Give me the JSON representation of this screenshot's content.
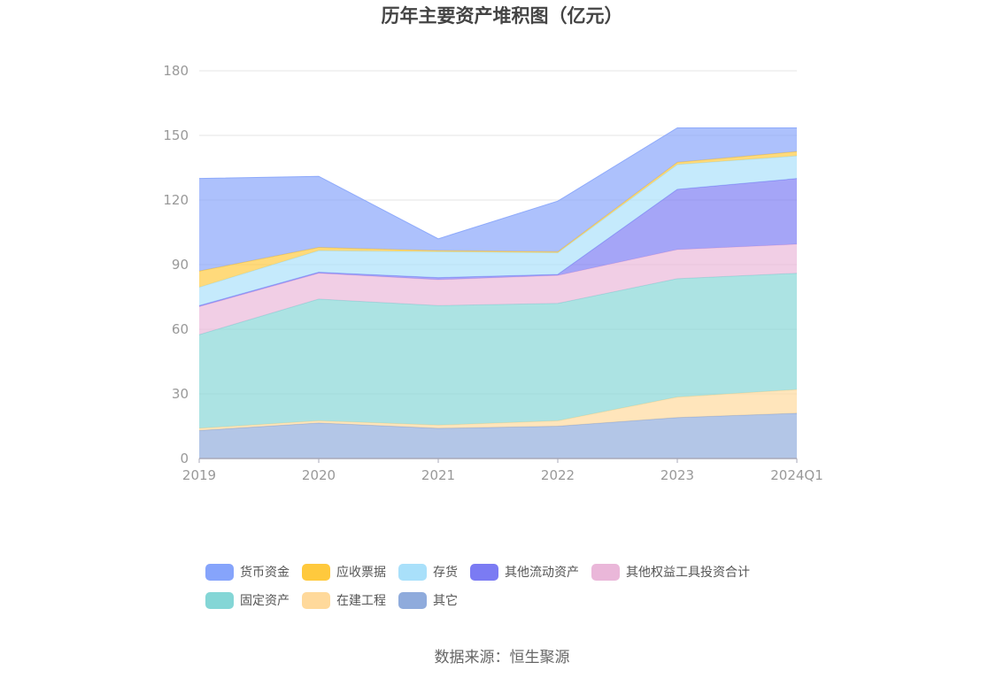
{
  "chart_data": {
    "type": "area",
    "stacked": true,
    "title": "历年主要资产堆积图（亿元）",
    "x": [
      "2019",
      "2020",
      "2021",
      "2022",
      "2023",
      "2024Q1"
    ],
    "ylim": [
      0,
      180
    ],
    "yticks": [
      0,
      30,
      60,
      90,
      120,
      150,
      180
    ],
    "grid": true,
    "legend_position": "bottom",
    "series": [
      {
        "name": "其它",
        "color": "#8fabdc",
        "values": [
          13.0,
          16.5,
          14.0,
          15.0,
          19.0,
          21.0
        ]
      },
      {
        "name": "在建工程",
        "color": "#ffd99b",
        "values": [
          1.0,
          1.0,
          1.5,
          2.5,
          9.5,
          11.0
        ]
      },
      {
        "name": "固定资产",
        "color": "#84d6d6",
        "values": [
          43.5,
          56.5,
          55.5,
          54.5,
          55.0,
          54.0
        ]
      },
      {
        "name": "其他权益工具投资合计",
        "color": "#eab7d9",
        "values": [
          13.0,
          12.0,
          12.0,
          13.0,
          13.5,
          13.5
        ]
      },
      {
        "name": "其他流动资产",
        "color": "#7b7bf3",
        "values": [
          0.5,
          0.5,
          1.0,
          0.5,
          28.0,
          30.5
        ]
      },
      {
        "name": "存货",
        "color": "#a9e0fa",
        "values": [
          8.5,
          10.0,
          12.0,
          10.0,
          11.5,
          10.5
        ]
      },
      {
        "name": "应收票据",
        "color": "#ffc93d",
        "values": [
          7.5,
          1.5,
          0.5,
          0.5,
          1.0,
          2.0
        ]
      },
      {
        "name": "货币资金",
        "color": "#86a4fb",
        "values": [
          43.0,
          33.0,
          5.5,
          23.5,
          16.0,
          11.0
        ]
      }
    ]
  },
  "legend": {
    "rows": [
      [
        {
          "label": "货币资金",
          "color": "#86a4fb"
        },
        {
          "label": "应收票据",
          "color": "#ffc93d"
        },
        {
          "label": "存货",
          "color": "#a9e0fa"
        },
        {
          "label": "其他流动资产",
          "color": "#7b7bf3"
        },
        {
          "label": "其他权益工具投资合计",
          "color": "#eab7d9"
        }
      ],
      [
        {
          "label": "固定资产",
          "color": "#84d6d6"
        },
        {
          "label": "在建工程",
          "color": "#ffd99b"
        },
        {
          "label": "其它",
          "color": "#8fabdc"
        }
      ]
    ]
  },
  "source": "数据来源：恒生聚源"
}
